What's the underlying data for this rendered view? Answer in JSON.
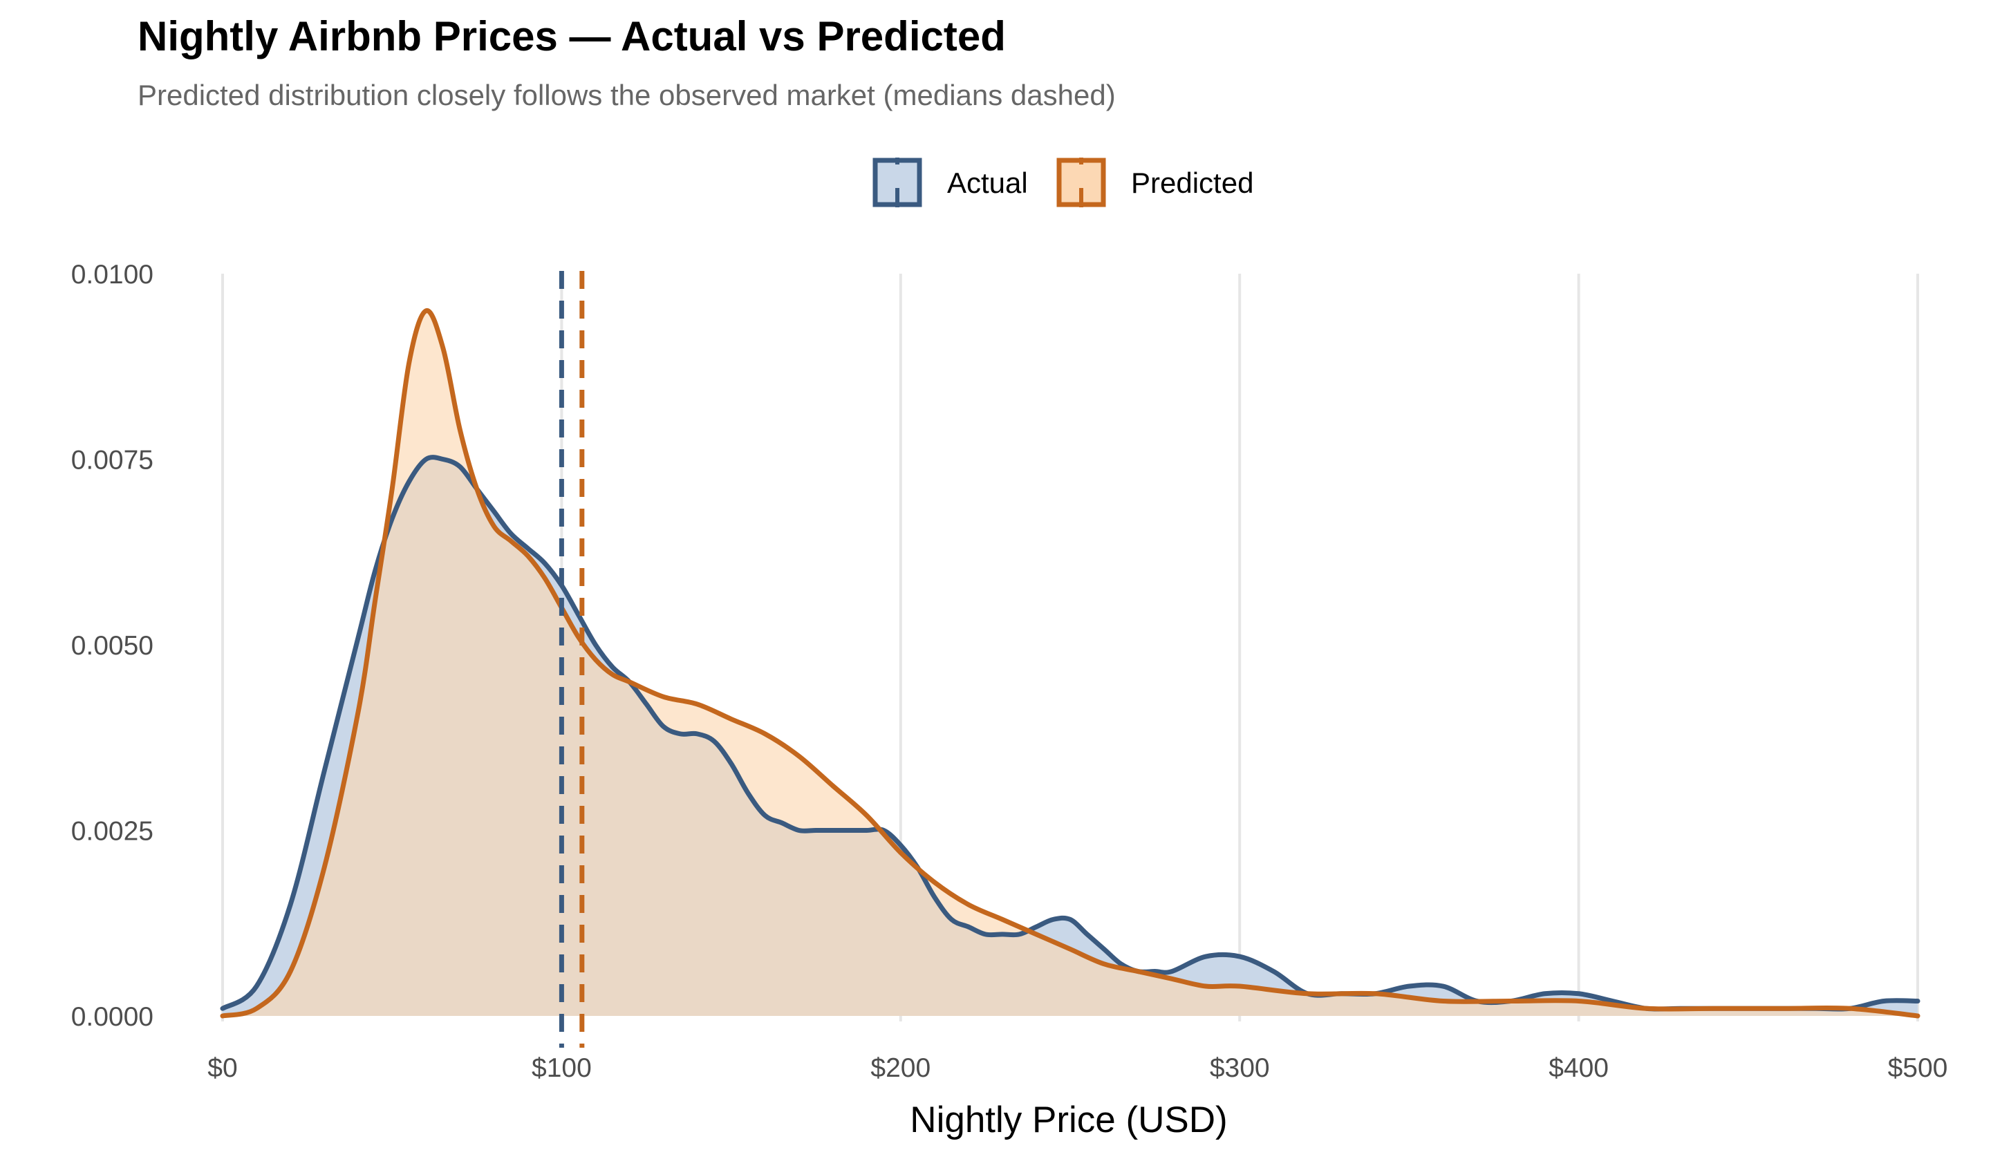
{
  "chart_data": {
    "type": "area",
    "title": "Nightly Airbnb Prices — Actual vs Predicted",
    "subtitle": "Predicted distribution closely follows the observed market (medians dashed)",
    "xlabel": "Nightly Price (USD)",
    "ylabel": "",
    "xlim": [
      0,
      500
    ],
    "ylim": [
      0,
      0.01
    ],
    "x_tick_values": [
      0,
      100,
      200,
      300,
      400,
      500
    ],
    "x_tick_labels": [
      "$0",
      "$100",
      "$200",
      "$300",
      "$400",
      "$500"
    ],
    "y_tick_values": [
      0,
      0.0025,
      0.005,
      0.0075,
      0.01
    ],
    "y_tick_labels": [
      "0.0000",
      "0.0025",
      "0.0050",
      "0.0075",
      "0.0100"
    ],
    "grid": "vertical major only",
    "legend_position": "top",
    "series": [
      {
        "name": "Actual",
        "line_color": "#3a5a80",
        "fill_color": "#c9d7e8",
        "median": 100,
        "x": [
          0,
          10,
          20,
          30,
          40,
          45,
          50,
          55,
          60,
          65,
          70,
          75,
          80,
          85,
          90,
          95,
          100,
          105,
          110,
          115,
          120,
          125,
          130,
          135,
          140,
          145,
          150,
          155,
          160,
          165,
          170,
          175,
          180,
          185,
          190,
          195,
          200,
          205,
          210,
          215,
          220,
          225,
          230,
          235,
          240,
          245,
          250,
          255,
          260,
          265,
          270,
          275,
          280,
          290,
          300,
          310,
          320,
          330,
          340,
          350,
          360,
          370,
          380,
          390,
          400,
          410,
          420,
          430,
          440,
          450,
          460,
          470,
          480,
          490,
          500
        ],
        "y": [
          0.0001,
          0.0004,
          0.0015,
          0.0033,
          0.0051,
          0.006,
          0.0067,
          0.0072,
          0.0075,
          0.0075,
          0.0074,
          0.0071,
          0.0068,
          0.0065,
          0.0063,
          0.0061,
          0.0058,
          0.0054,
          0.005,
          0.0047,
          0.0045,
          0.0042,
          0.0039,
          0.0038,
          0.0038,
          0.0037,
          0.0034,
          0.003,
          0.0027,
          0.0026,
          0.0025,
          0.0025,
          0.0025,
          0.0025,
          0.0025,
          0.0025,
          0.0023,
          0.002,
          0.0016,
          0.0013,
          0.0012,
          0.0011,
          0.0011,
          0.0011,
          0.0012,
          0.0013,
          0.0013,
          0.0011,
          0.0009,
          0.0007,
          0.0006,
          0.0006,
          0.0006,
          0.0008,
          0.0008,
          0.0006,
          0.0003,
          0.0003,
          0.0003,
          0.0004,
          0.0004,
          0.0002,
          0.0002,
          0.0003,
          0.0003,
          0.0002,
          0.0001,
          0.0001,
          0.0001,
          0.0001,
          0.0001,
          0.0001,
          0.0001,
          0.0002,
          0.0002
        ]
      },
      {
        "name": "Predicted",
        "line_color": "#c4671d",
        "fill_color": "#fcd8b4",
        "median": 106,
        "x": [
          0,
          10,
          20,
          30,
          40,
          45,
          50,
          55,
          60,
          65,
          70,
          75,
          80,
          85,
          90,
          95,
          100,
          105,
          110,
          115,
          120,
          130,
          140,
          150,
          160,
          170,
          180,
          190,
          200,
          210,
          220,
          230,
          240,
          250,
          260,
          270,
          280,
          290,
          300,
          320,
          340,
          360,
          380,
          400,
          420,
          440,
          460,
          480,
          500
        ],
        "y": [
          0.0,
          0.0001,
          0.0006,
          0.002,
          0.0041,
          0.0056,
          0.0071,
          0.0088,
          0.0095,
          0.009,
          0.0079,
          0.0071,
          0.0066,
          0.0064,
          0.0062,
          0.0059,
          0.0055,
          0.0051,
          0.0048,
          0.0046,
          0.0045,
          0.0043,
          0.0042,
          0.004,
          0.0038,
          0.0035,
          0.0031,
          0.0027,
          0.0022,
          0.0018,
          0.0015,
          0.0013,
          0.0011,
          0.0009,
          0.0007,
          0.0006,
          0.0005,
          0.0004,
          0.0004,
          0.0003,
          0.0003,
          0.0002,
          0.0002,
          0.0002,
          0.0001,
          0.0001,
          0.0001,
          0.0001,
          0.0
        ]
      }
    ]
  }
}
